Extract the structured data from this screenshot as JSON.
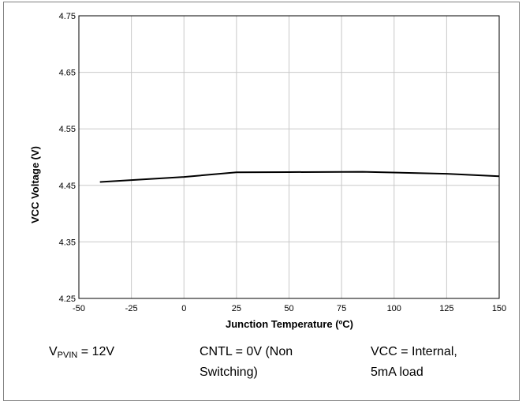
{
  "chart_data": {
    "type": "line",
    "title": "",
    "xlabel": "Junction Temperature (ºC)",
    "ylabel": "VCC Voltage (V)",
    "xlim": [
      -50,
      150
    ],
    "ylim": [
      4.25,
      4.75
    ],
    "xticks": [
      -50,
      -25,
      0,
      25,
      50,
      75,
      100,
      125,
      150
    ],
    "yticks": [
      4.25,
      4.35,
      4.45,
      4.55,
      4.65,
      4.75
    ],
    "xtick_labels": [
      "-50",
      "-25",
      "0",
      "25",
      "50",
      "75",
      "100",
      "125",
      "150"
    ],
    "ytick_labels": [
      "4.25",
      "4.35",
      "4.45",
      "4.55",
      "4.65",
      "4.75"
    ],
    "grid": true,
    "series": [
      {
        "x": [
          -40,
          0,
          25,
          50,
          85,
          125,
          150
        ],
        "y": [
          4.456,
          4.465,
          4.473,
          4.4735,
          4.474,
          4.4705,
          4.466
        ],
        "color": "#000000"
      }
    ]
  },
  "conditions": {
    "vpvin_main": "V",
    "vpvin_sub": "PVIN",
    "vpvin_value": " = 12V",
    "cntl_line1": "CNTL = 0V (Non",
    "cntl_line2": "Switching)",
    "vcc_line1": "VCC = Internal,",
    "vcc_line2": "5mA load"
  }
}
